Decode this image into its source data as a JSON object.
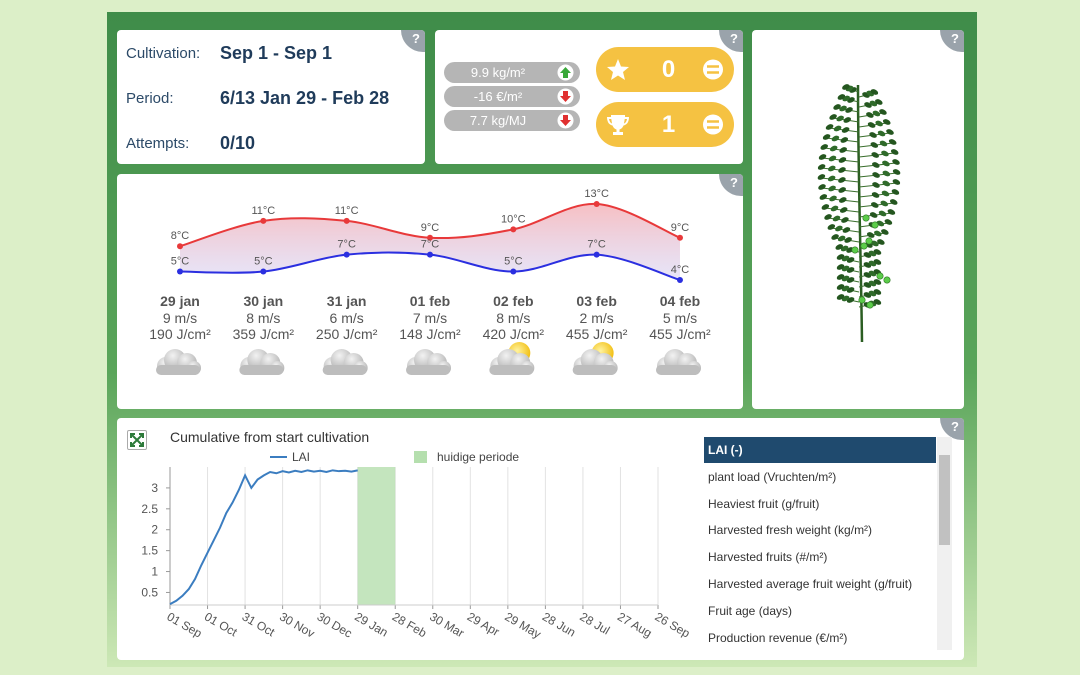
{
  "help": "?",
  "info": [
    {
      "label": "Cultivation:",
      "value": "Sep 1 - Sep 1"
    },
    {
      "label": "Period:",
      "value": "6/13 Jan 29 - Feb 28"
    },
    {
      "label": "Attempts:",
      "value": "0/10"
    }
  ],
  "kpis": [
    {
      "text": "9.9 kg/m²",
      "trend": "up"
    },
    {
      "text": "-16 €/m²",
      "trend": "down"
    },
    {
      "text": "7.7 kg/MJ",
      "trend": "down"
    }
  ],
  "scores": [
    {
      "icon": "star",
      "value": 0
    },
    {
      "icon": "trophy",
      "value": 1
    }
  ],
  "weather": {
    "days": [
      "29 jan",
      "30 jan",
      "31 jan",
      "01 feb",
      "02 feb",
      "03 feb",
      "04 feb"
    ],
    "high": {
      "color": "#e8393a",
      "values": [
        8,
        11,
        11,
        9,
        10,
        13,
        9
      ],
      "value_labels": [
        "8°C",
        "11°C",
        "11°C",
        "9°C",
        "10°C",
        "13°C",
        "9°C"
      ]
    },
    "low": {
      "color": "#2b2fe0",
      "values": [
        5,
        5,
        7,
        7,
        5,
        7,
        4
      ],
      "value_labels": [
        "5°C",
        "5°C",
        "7°C",
        "7°C",
        "5°C",
        "7°C",
        "4°C"
      ]
    },
    "wind": [
      "9 m/s",
      "8 m/s",
      "6 m/s",
      "7 m/s",
      "8 m/s",
      "2 m/s",
      "5 m/s"
    ],
    "radiation": [
      "190 J/cm²",
      "359 J/cm²",
      "250 J/cm²",
      "148 J/cm²",
      "420 J/cm²",
      "455 J/cm²",
      "455 J/cm²"
    ],
    "icons": [
      "cloudy",
      "cloudy",
      "cloudy",
      "cloudy",
      "partly-sunny",
      "partly-sunny",
      "cloudy"
    ]
  },
  "chart_data": {
    "type": "line",
    "title": "Cumulative from start cultivation",
    "x": [
      0,
      5,
      10,
      15,
      20,
      25,
      30,
      35,
      40,
      45,
      50,
      55,
      60,
      65,
      70,
      75,
      80,
      85,
      90,
      95,
      100,
      105,
      110,
      115,
      120,
      125,
      130,
      135,
      140,
      145,
      150
    ],
    "series": [
      {
        "name": "LAI",
        "color": "#3b7dc0",
        "values": [
          0.22,
          0.3,
          0.42,
          0.58,
          0.82,
          1.15,
          1.45,
          1.75,
          2.05,
          2.4,
          2.65,
          2.95,
          3.3,
          3.0,
          3.2,
          3.3,
          3.38,
          3.35,
          3.4,
          3.37,
          3.41,
          3.38,
          3.42,
          3.39,
          3.41,
          3.38,
          3.42,
          3.4,
          3.41,
          3.39,
          3.42
        ]
      }
    ],
    "highlight": {
      "name": "huidige periode",
      "color": "#b5dfae",
      "x": [
        150,
        180
      ]
    },
    "xlim": [
      0,
      390
    ],
    "xticks": [
      {
        "value": 0,
        "label": "01 Sep"
      },
      {
        "value": 30,
        "label": "01 Oct"
      },
      {
        "value": 60,
        "label": "31 Oct"
      },
      {
        "value": 90,
        "label": "30 Nov"
      },
      {
        "value": 120,
        "label": "30 Dec"
      },
      {
        "value": 150,
        "label": "29 Jan"
      },
      {
        "value": 180,
        "label": "28 Feb"
      },
      {
        "value": 210,
        "label": "30 Mar"
      },
      {
        "value": 240,
        "label": "29 Apr"
      },
      {
        "value": 270,
        "label": "29 May"
      },
      {
        "value": 300,
        "label": "28 Jun"
      },
      {
        "value": 330,
        "label": "28 Jul"
      },
      {
        "value": 360,
        "label": "27 Aug"
      },
      {
        "value": 390,
        "label": "26 Sep"
      }
    ],
    "ylim": [
      0.2,
      3.5
    ],
    "yticks": [
      0.5,
      1,
      1.5,
      2,
      2.5,
      3
    ],
    "grid": true
  },
  "metrics": {
    "items": [
      "LAI (-)",
      "plant load (Vruchten/m²)",
      "Heaviest fruit (g/fruit)",
      "Harvested fresh weight (kg/m²)",
      "Harvested fruits (#/m²)",
      "Harvested average fruit weight (g/fruit)",
      "Fruit age (days)",
      "Production revenue (€/m²)"
    ],
    "selected": 0
  }
}
